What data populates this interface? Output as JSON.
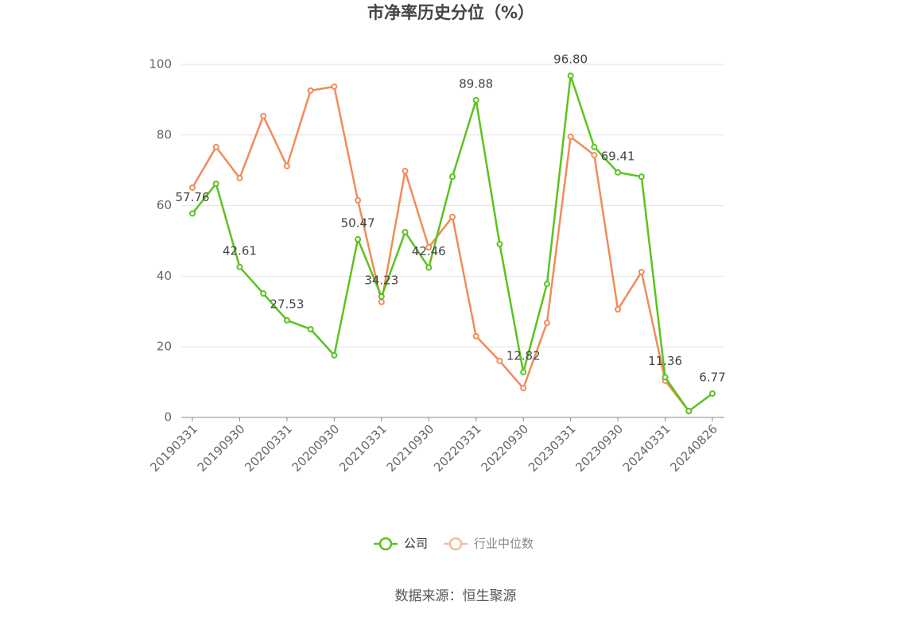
{
  "chart_data": {
    "type": "line",
    "title": "市净率历史分位（%）",
    "categories": [
      "20190331",
      null,
      "20190930",
      null,
      "20200331",
      null,
      "20200930",
      null,
      "20210331",
      null,
      "20210930",
      null,
      "20220331",
      null,
      "20220930",
      null,
      "20230331",
      null,
      "20230930",
      null,
      "20240331",
      null,
      "20240826"
    ],
    "series": [
      {
        "name": "公司",
        "color": "#5ac31f",
        "values": [
          57.76,
          66.2,
          42.61,
          35.1,
          27.53,
          25.0,
          17.6,
          50.47,
          34.23,
          52.5,
          42.46,
          68.2,
          89.88,
          49.1,
          12.82,
          37.8,
          96.8,
          76.6,
          69.41,
          68.2,
          11.36,
          1.8,
          6.77
        ],
        "value_labels": [
          "57.76",
          null,
          "42.61",
          null,
          "27.53",
          null,
          null,
          "50.47",
          "34.23",
          null,
          "42.46",
          null,
          "89.88",
          null,
          "12.82",
          null,
          "96.80",
          null,
          "69.41",
          null,
          "11.36",
          null,
          "6.77"
        ]
      },
      {
        "name": "行业中位数",
        "color": "#f08c5a",
        "values": [
          65.1,
          76.6,
          67.8,
          85.4,
          71.2,
          92.6,
          93.7,
          61.5,
          32.7,
          69.8,
          48.2,
          56.8,
          23.0,
          16.0,
          8.3,
          26.8,
          79.5,
          74.3,
          30.6,
          41.2,
          10.4,
          1.8,
          null
        ]
      }
    ],
    "ylim": [
      0,
      100
    ],
    "yticks": [
      0,
      20,
      40,
      60,
      80,
      100
    ],
    "grid": true,
    "legend": "bottom",
    "source": "数据来源：恒生聚源"
  }
}
